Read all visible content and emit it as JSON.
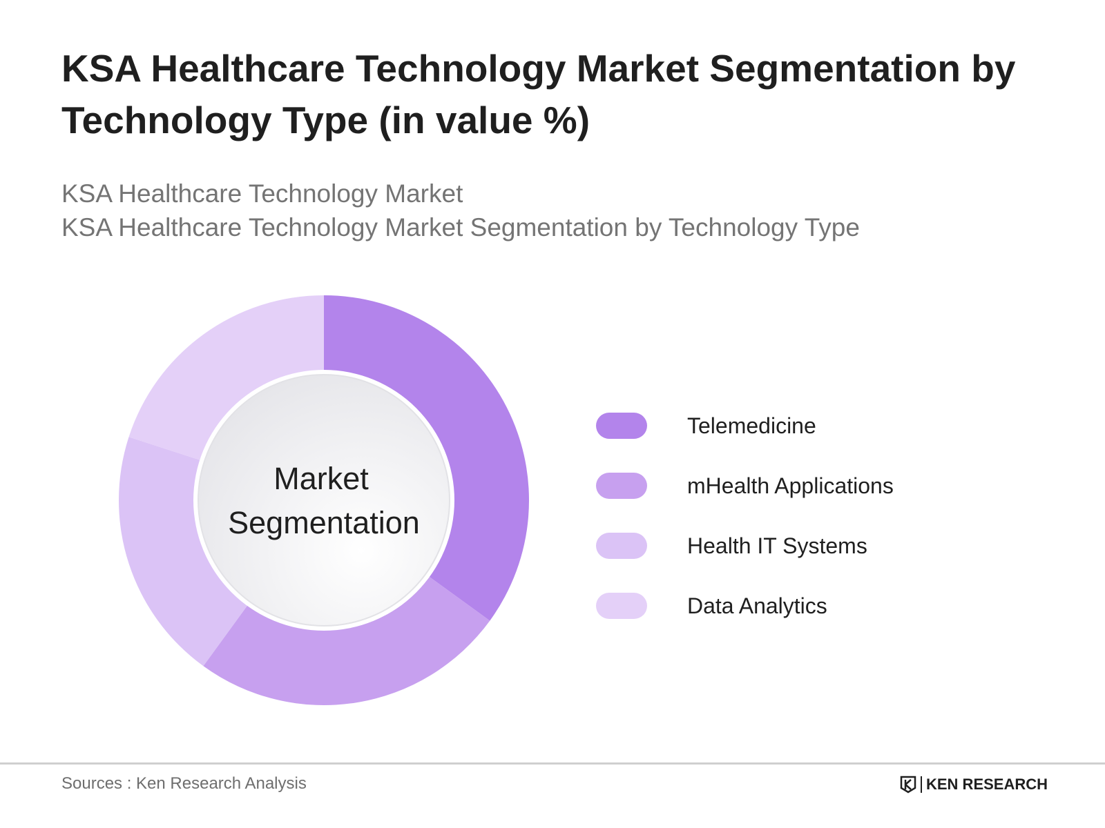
{
  "title": {
    "line1": "KSA Healthcare Technology Market Segmentation by",
    "line2": "Technology Type (in value %)"
  },
  "subtitle": {
    "line1": "KSA Healthcare Technology Market",
    "line2": "KSA Healthcare Technology Market Segmentation by Technology Type"
  },
  "chart_data": {
    "type": "pie",
    "variant": "donut",
    "center_label": [
      "Market",
      "Segmentation"
    ],
    "categories": [
      "Telemedicine",
      "mHealth Applications",
      "Health IT Systems",
      "Data Analytics"
    ],
    "values": [
      35,
      25,
      20,
      20
    ],
    "colors": [
      "#b384eb",
      "#c7a0ef",
      "#dbc3f6",
      "#e4d0f8"
    ],
    "legend_position": "right"
  },
  "footer": {
    "source": "Sources : Ken Research Analysis",
    "brand": "KEN RESEARCH"
  }
}
